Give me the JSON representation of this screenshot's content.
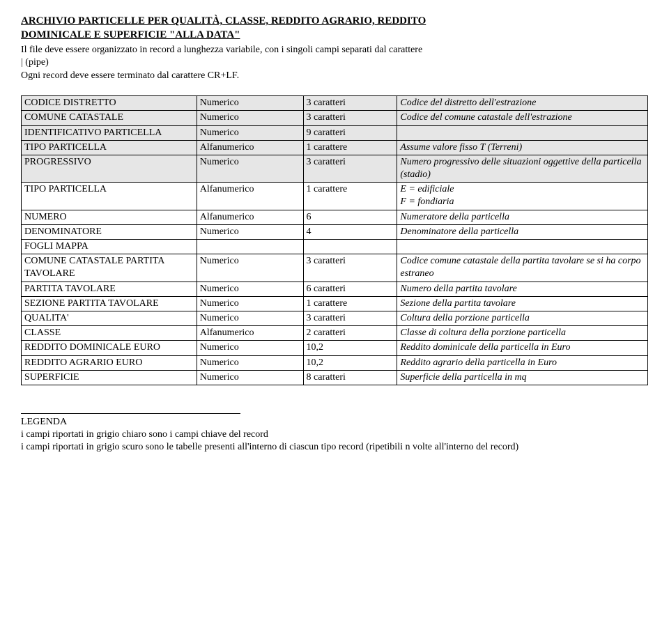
{
  "header": {
    "title_line1": "ARCHIVIO PARTICELLE PER QUALITÀ, CLASSE, REDDITO AGRARIO, REDDITO",
    "title_line2": "DOMINICALE E SUPERFICIE \"ALLA DATA\"",
    "intro_line1": "Il file deve essere organizzato in record a lunghezza variabile, con i singoli campi separati dal carattere",
    "intro_line2": "|  (pipe)",
    "intro_line3": "Ogni record deve essere terminato dal carattere CR+LF."
  },
  "colors": {
    "shade": "#e6e6e6",
    "border": "#000000",
    "text": "#000000",
    "background": "#ffffff"
  },
  "rows": [
    {
      "shade": true,
      "c1": "CODICE DISTRETTO",
      "c2": "Numerico",
      "c3": "3 caratteri",
      "c4": "Codice del distretto dell'estrazione"
    },
    {
      "shade": true,
      "c1": "COMUNE CATASTALE",
      "c2": "Numerico",
      "c3": "3 caratteri",
      "c4": "Codice del comune catastale dell'estrazione"
    },
    {
      "shade": true,
      "c1": "IDENTIFICATIVO PARTICELLA",
      "c2": "Numerico",
      "c3": "9 caratteri",
      "c4": ""
    },
    {
      "shade": true,
      "c1": "TIPO PARTICELLA",
      "c2": "Alfanumerico",
      "c3": "1 carattere",
      "c4": "Assume valore fisso T (Terreni)"
    },
    {
      "shade": true,
      "c1": "PROGRESSIVO",
      "c2": "Numerico",
      "c3": "3 caratteri",
      "c4": "Numero progressivo delle situazioni oggettive della particella (stadio)"
    },
    {
      "shade": false,
      "c1": "TIPO PARTICELLA",
      "c2": "Alfanumerico",
      "c3": "1 carattere",
      "c4": "E = edificiale\nF = fondiaria"
    },
    {
      "shade": false,
      "c1": "NUMERO",
      "c2": "Alfanumerico",
      "c3": "6",
      "c4": "Numeratore della particella"
    },
    {
      "shade": false,
      "c1": "DENOMINATORE",
      "c2": "Numerico",
      "c3": "4",
      "c4": "Denominatore della particella"
    },
    {
      "shade": false,
      "c1": "FOGLI MAPPA",
      "c2": "",
      "c3": "",
      "c4": ""
    },
    {
      "shade": false,
      "c1": "COMUNE CATASTALE PARTITA TAVOLARE",
      "c2": "Numerico",
      "c3": "3 caratteri",
      "c4": "Codice comune catastale della partita tavolare se si ha corpo estraneo"
    },
    {
      "shade": false,
      "c1": "PARTITA TAVOLARE",
      "c2": "Numerico",
      "c3": "6 caratteri",
      "c4": "Numero della partita tavolare"
    },
    {
      "shade": false,
      "c1": "SEZIONE PARTITA TAVOLARE",
      "c2": "Numerico",
      "c3": "1 carattere",
      "c4": "Sezione della partita tavolare"
    },
    {
      "shade": false,
      "c1": "QUALITA'",
      "c2": "Numerico",
      "c3": "3 caratteri",
      "c4": "Coltura della porzione particella"
    },
    {
      "shade": false,
      "c1": "CLASSE",
      "c2": "Alfanumerico",
      "c3": "2 caratteri",
      "c4": "Classe di coltura della porzione particella"
    },
    {
      "shade": false,
      "c1": "REDDITO DOMINICALE EURO",
      "c2": "Numerico",
      "c3": "10,2",
      "c4": "Reddito dominicale della particella in Euro"
    },
    {
      "shade": false,
      "c1": "REDDITO AGRARIO EURO",
      "c2": "Numerico",
      "c3": "10,2",
      "c4": "Reddito agrario della particella in Euro"
    },
    {
      "shade": false,
      "c1": "SUPERFICIE",
      "c2": "Numerico",
      "c3": "8 caratteri",
      "c4": "Superficie della particella in mq"
    }
  ],
  "legend": {
    "title": "LEGENDA",
    "line1": "i campi riportati in grigio chiaro sono i campi chiave del record",
    "line2": "i campi riportati in grigio scuro sono le tabelle presenti all'interno di ciascun tipo record (ripetibili n volte all'interno del record)"
  }
}
